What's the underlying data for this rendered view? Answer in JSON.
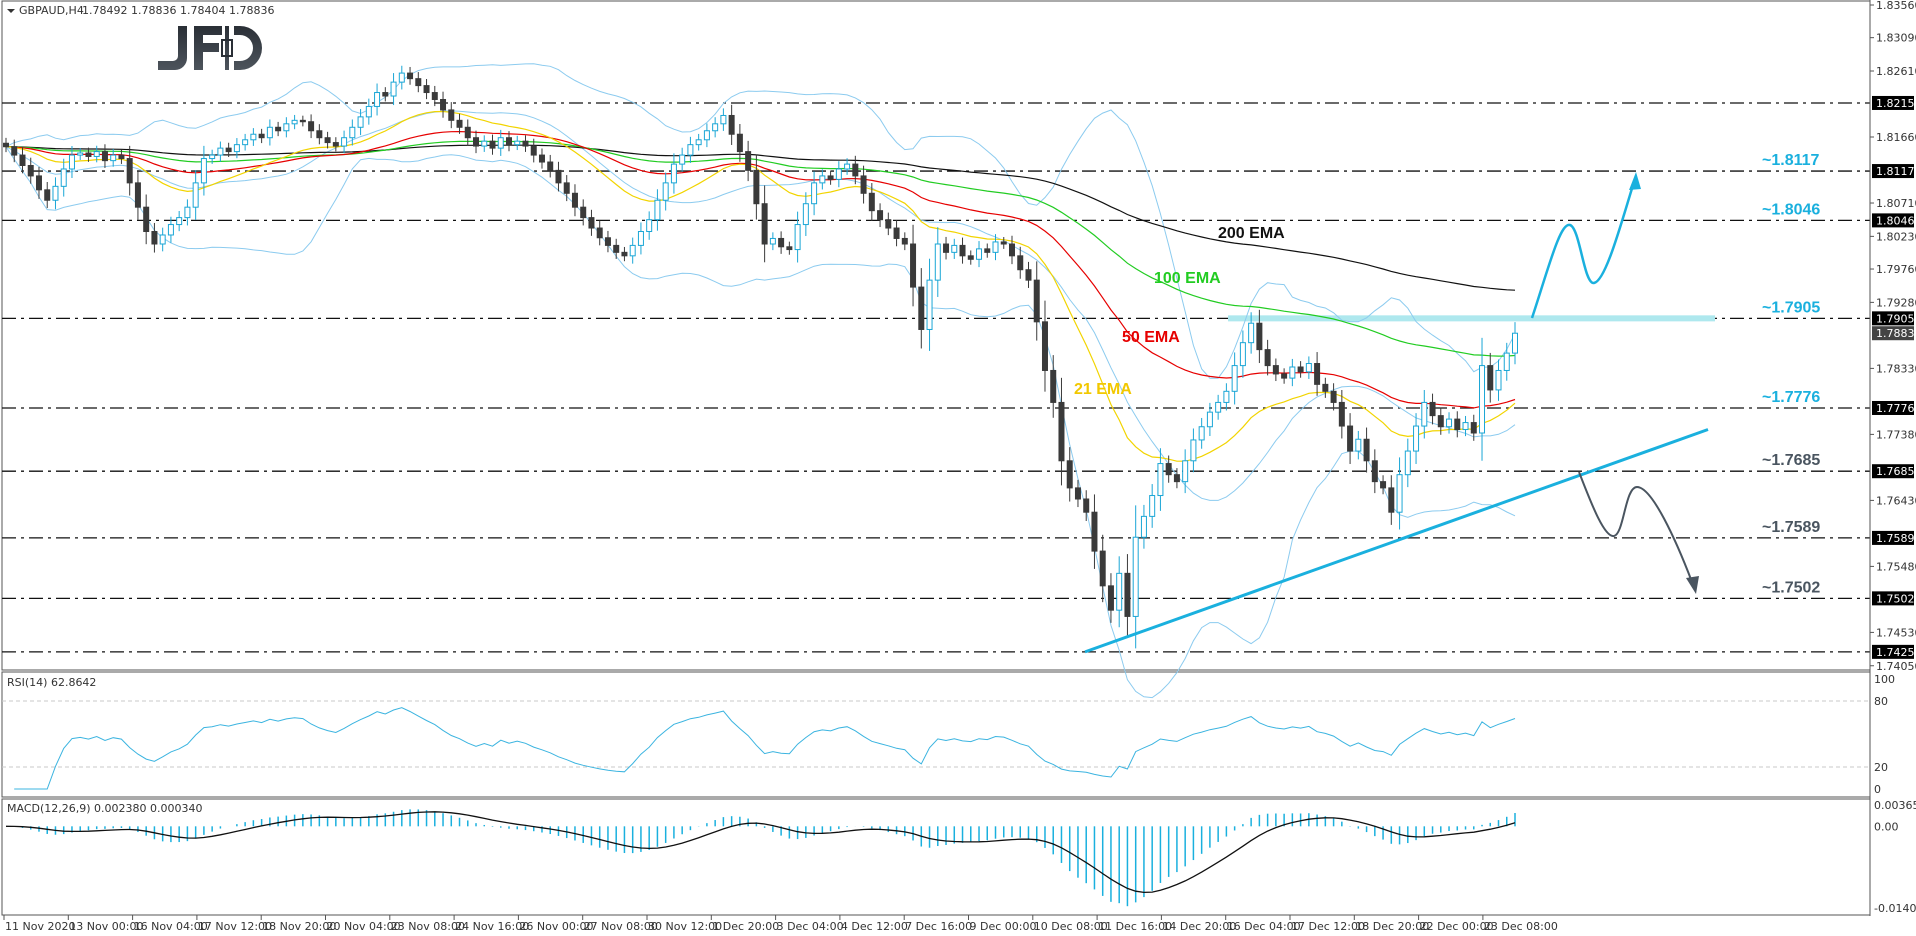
{
  "header": {
    "symbol": "GBPAUD,H4",
    "ohlc": "1.78492 1.78836 1.78404 1.78836"
  },
  "logo": "JFD",
  "colors": {
    "bull_border": "#1aa6d6",
    "bear_fill": "#3a3a3a",
    "ema21": "#f2d400",
    "ema50": "#e60000",
    "ema100": "#22cc22",
    "ema200": "#111111",
    "bollinger": "#8ccbef",
    "trendline": "#1ab0de",
    "bull_label": "#1ab0de",
    "bear_label": "#4a5560",
    "resistance_band": "#aee8ee"
  },
  "chart_data": {
    "type": "candlestick",
    "symbol": "GBPAUD",
    "timeframe": "H4",
    "ylim": [
      1.7405,
      1.8356
    ],
    "close": [
      1.8152,
      1.814,
      1.8125,
      1.811,
      1.809,
      1.8075,
      1.8095,
      1.812,
      1.814,
      1.8143,
      1.8138,
      1.8145,
      1.8132,
      1.814,
      1.8135,
      1.81,
      1.8065,
      1.803,
      1.8012,
      1.8025,
      1.804,
      1.805,
      1.8065,
      1.81,
      1.8135,
      1.814,
      1.815,
      1.8145,
      1.8155,
      1.8162,
      1.817,
      1.8165,
      1.818,
      1.8175,
      1.8185,
      1.819,
      1.8188,
      1.8175,
      1.8165,
      1.8158,
      1.8153,
      1.8165,
      1.818,
      1.8195,
      1.821,
      1.823,
      1.8225,
      1.8245,
      1.8258,
      1.825,
      1.824,
      1.823,
      1.822,
      1.8205,
      1.819,
      1.818,
      1.8165,
      1.8153,
      1.816,
      1.815,
      1.8165,
      1.8155,
      1.816,
      1.8153,
      1.814,
      1.813,
      1.8118,
      1.81,
      1.8085,
      1.8065,
      1.805,
      1.8035,
      1.8021,
      1.801,
      1.8,
      1.7995,
      1.801,
      1.803,
      1.8047,
      1.8075,
      1.81,
      1.8127,
      1.814,
      1.8155,
      1.8162,
      1.8175,
      1.8185,
      1.8197,
      1.817,
      1.8145,
      1.8118,
      1.807,
      1.8012,
      1.802,
      1.8008,
      1.8004,
      1.804,
      1.807,
      1.81,
      1.811,
      1.8105,
      1.812,
      1.8127,
      1.811,
      1.8085,
      1.806,
      1.8047,
      1.8035,
      1.802,
      1.8012,
      1.795,
      1.7889,
      1.796,
      1.8012,
      1.8,
      1.801,
      1.7995,
      1.799,
      1.8005,
      1.8,
      1.8015,
      1.8012,
      1.7995,
      1.7975,
      1.796,
      1.79,
      1.783,
      1.7784,
      1.77,
      1.7661,
      1.7645,
      1.7626,
      1.757,
      1.752,
      1.7485,
      1.7538,
      1.7476,
      1.759,
      1.762,
      1.765,
      1.7696,
      1.768,
      1.767,
      1.77,
      1.773,
      1.7749,
      1.777,
      1.7784,
      1.78,
      1.7837,
      1.787,
      1.7898,
      1.786,
      1.7837,
      1.7825,
      1.7819,
      1.7835,
      1.7828,
      1.784,
      1.781,
      1.78,
      1.7784,
      1.775,
      1.7714,
      1.7731,
      1.77,
      1.767,
      1.7661,
      1.7626,
      1.768,
      1.7714,
      1.775,
      1.7784,
      1.7765,
      1.7749,
      1.776,
      1.7745,
      1.7755,
      1.774,
      1.7837,
      1.7802,
      1.783,
      1.7855,
      1.78836
    ],
    "ema_labels": [
      {
        "period": 200,
        "label": "200 EMA"
      },
      {
        "period": 100,
        "label": "100 EMA"
      },
      {
        "period": 50,
        "label": "50 EMA"
      },
      {
        "period": 21,
        "label": "21 EMA"
      }
    ],
    "bollinger": {
      "period": 20,
      "deviations": 2
    },
    "y_ticks": [
      "1.83560",
      "1.83090",
      "1.82610",
      "1.81660",
      "1.80710",
      "1.80230",
      "1.79760",
      "1.79280",
      "1.78330",
      "1.77380",
      "1.76430",
      "1.75480",
      "1.74530",
      "1.74050"
    ],
    "levels": [
      {
        "value": 1.8215,
        "axis_label": "1.82150",
        "label": ""
      },
      {
        "value": 1.8117,
        "axis_label": "1.81170",
        "label": "~1.8117",
        "side": "bull"
      },
      {
        "value": 1.8046,
        "axis_label": "1.80460",
        "label": "~1.8046",
        "side": "bull"
      },
      {
        "value": 1.7905,
        "axis_label": "1.79050",
        "label": "~1.7905",
        "side": "bull"
      },
      {
        "value": 1.7776,
        "axis_label": "1.77760",
        "label": "~1.7776",
        "side": "bull"
      },
      {
        "value": 1.7685,
        "axis_label": "1.76850",
        "label": "~1.7685",
        "side": "bear"
      },
      {
        "value": 1.7589,
        "axis_label": "1.75890",
        "label": "~1.7589",
        "side": "bear"
      },
      {
        "value": 1.7502,
        "axis_label": "1.75020",
        "label": "~1.7502",
        "side": "bear"
      },
      {
        "value": 1.7425,
        "axis_label": "1.74250",
        "label": ""
      }
    ],
    "current_price": "1.78836",
    "trendline": {
      "from_price": 1.7425,
      "to_price": 1.7745
    },
    "x_ticks": [
      "11 Nov 2020",
      "13 Nov 00:00",
      "16 Nov 04:00",
      "17 Nov 12:00",
      "18 Nov 20:00",
      "20 Nov 04:00",
      "23 Nov 08:00",
      "24 Nov 16:00",
      "26 Nov 00:00",
      "27 Nov 08:00",
      "30 Nov 12:00",
      "1 Dec 20:00",
      "3 Dec 04:00",
      "4 Dec 12:00",
      "7 Dec 16:00",
      "9 Dec 00:00",
      "10 Dec 08:00",
      "11 Dec 16:00",
      "14 Dec 20:00",
      "16 Dec 04:00",
      "17 Dec 12:00",
      "18 Dec 20:00",
      "22 Dec 00:00",
      "23 Dec 08:00"
    ],
    "rsi": {
      "label": "RSI(14) 62.8642",
      "period": 14,
      "ticks": [
        "100",
        "80",
        "20",
        "0"
      ],
      "levels": [
        80,
        20
      ]
    },
    "macd": {
      "label": "MACD(12,26,9) 0.002380 0.000340",
      "fast": 12,
      "slow": 26,
      "signal": 9,
      "ticks": [
        "0.003659",
        "0.00",
        "-0.014023"
      ],
      "range": [
        -0.014023,
        0.003659
      ]
    }
  }
}
